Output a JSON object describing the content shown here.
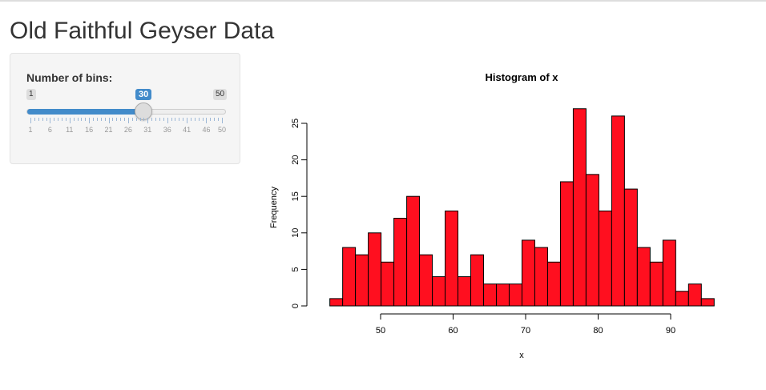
{
  "page": {
    "title": "Old Faithful Geyser Data"
  },
  "sidebar": {
    "slider": {
      "label": "Number of bins:",
      "min": 1,
      "max": 50,
      "value": 30,
      "min_label": "1",
      "max_label": "50",
      "value_label": "30",
      "tick_labels": [
        "1",
        "6",
        "11",
        "16",
        "21",
        "26",
        "31",
        "36",
        "41",
        "46",
        "50"
      ],
      "accent": "#428bca"
    }
  },
  "chart_data": {
    "type": "bar",
    "title": "Histogram of x",
    "xlabel": "x",
    "ylabel": "Frequency",
    "bin_range": [
      43,
      96
    ],
    "bins": 30,
    "values": [
      1,
      8,
      7,
      10,
      6,
      12,
      15,
      7,
      4,
      13,
      4,
      7,
      3,
      3,
      3,
      9,
      8,
      6,
      17,
      27,
      18,
      13,
      26,
      16,
      8,
      6,
      9,
      2,
      3,
      1
    ],
    "x_ticks": [
      "50",
      "60",
      "70",
      "80",
      "90"
    ],
    "y_ticks": [
      "0",
      "5",
      "10",
      "15",
      "20",
      "25"
    ],
    "bar_color": "#ff0f1f",
    "grid": false
  }
}
